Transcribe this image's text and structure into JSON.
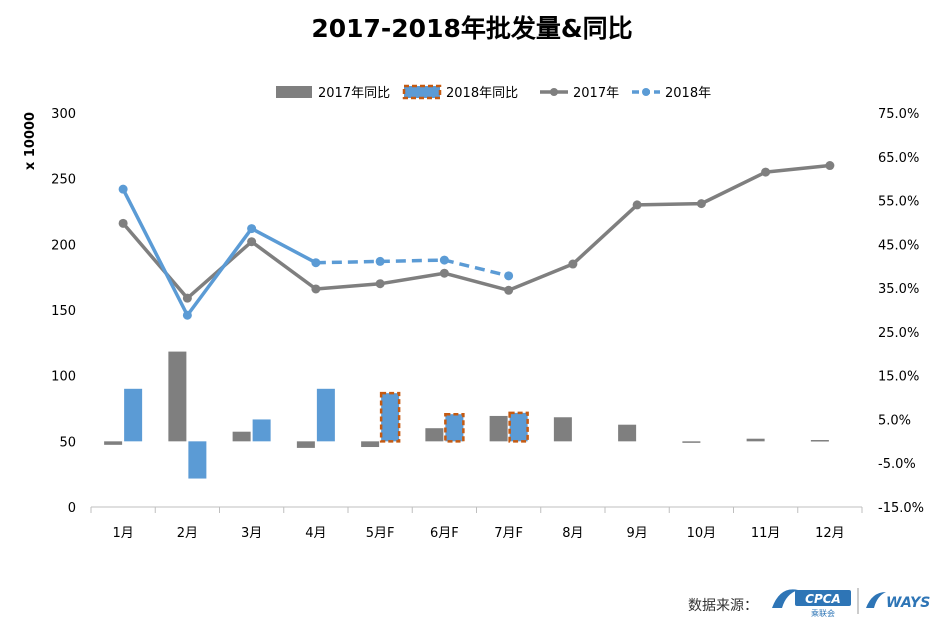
{
  "chart_data": {
    "type": "bar+line",
    "title": "2017-2018年批发量&同比",
    "categories": [
      "1月",
      "2月",
      "3月",
      "4月",
      "5月F",
      "6月F",
      "7月F",
      "8月",
      "9月",
      "10月",
      "11月",
      "12月"
    ],
    "left_axis": {
      "unit_label": "x 10000",
      "min": 0,
      "max": 300,
      "ticks": [
        "0",
        "50",
        "100",
        "150",
        "200",
        "250",
        "300"
      ]
    },
    "right_axis": {
      "min": -15,
      "max": 75,
      "ticks": [
        "-15.0%",
        "-5.0%",
        "5.0%",
        "15.0%",
        "25.0%",
        "35.0%",
        "45.0%",
        "55.0%",
        "65.0%",
        "75.0%"
      ]
    },
    "series": [
      {
        "name": "2017年同比",
        "kind": "bar",
        "axis": "right",
        "color": "#7f7f7f",
        "values": [
          -0.8,
          20.5,
          2.2,
          -1.5,
          -1.3,
          3.0,
          5.8,
          5.5,
          3.8,
          -0.1,
          0.6,
          0.3
        ]
      },
      {
        "name": "2018年同比",
        "kind": "bar",
        "axis": "right",
        "color": "#5b9bd5",
        "values": [
          12.0,
          -8.5,
          5.0,
          12.0,
          null,
          null,
          null,
          null,
          null,
          null,
          null,
          null
        ]
      },
      {
        "name": "2018年同比",
        "kind": "bar-forecast",
        "axis": "right",
        "color": "#5b9bd5",
        "border_color": "#c55a11",
        "values": [
          null,
          null,
          null,
          null,
          11.0,
          6.2,
          6.5,
          null,
          null,
          null,
          null,
          null
        ]
      },
      {
        "name": "2017年",
        "kind": "line",
        "axis": "left",
        "color": "#7f7f7f",
        "values": [
          216,
          159,
          202,
          166,
          170,
          178,
          165,
          185,
          230,
          231,
          255,
          260
        ]
      },
      {
        "name": "2018年",
        "kind": "line",
        "axis": "left",
        "color": "#5b9bd5",
        "values": [
          242,
          146,
          212,
          186,
          null,
          null,
          null,
          null,
          null,
          null,
          null,
          null
        ]
      },
      {
        "name": "2018年",
        "kind": "line-forecast",
        "axis": "left",
        "color": "#5b9bd5",
        "values": [
          null,
          null,
          null,
          186,
          187,
          188,
          176,
          null,
          null,
          null,
          null,
          null
        ]
      }
    ],
    "legend": {
      "position": "top",
      "items": [
        {
          "label": "2017年同比",
          "style": "bar",
          "color": "#7f7f7f"
        },
        {
          "label": "2018年同比",
          "style": "bar-dashed",
          "color": "#5b9bd5",
          "border_color": "#c55a11"
        },
        {
          "label": "2017年",
          "style": "line",
          "color": "#7f7f7f"
        },
        {
          "label": "2018年",
          "style": "line-dashed",
          "color": "#5b9bd5"
        }
      ]
    },
    "grid": false
  },
  "source": {
    "label": "数据来源：",
    "logo_cpca": "CPCA",
    "logo_cpca_sub": "乘联会",
    "logo_ways": "WAYS"
  }
}
